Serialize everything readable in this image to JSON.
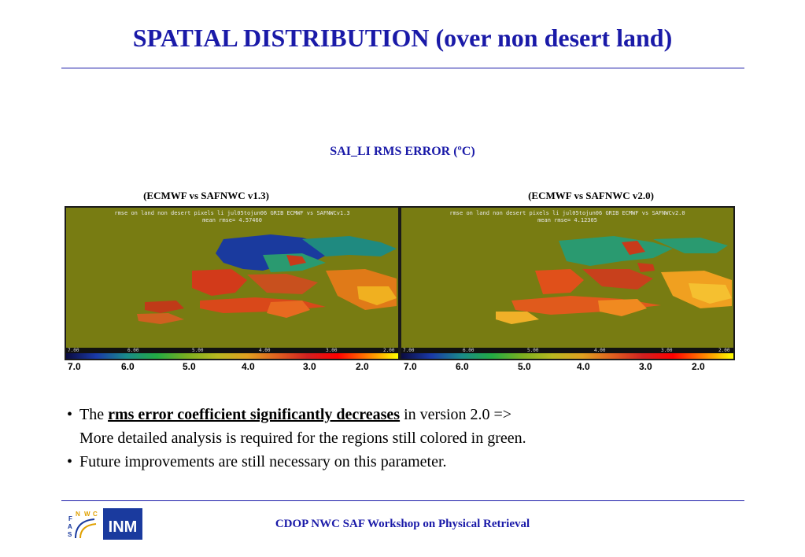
{
  "slide": {
    "title": "SPATIAL DISTRIBUTION (over non desert land)",
    "subtitle": "SAI_LI RMS ERROR (ºC)",
    "footer": "CDOP NWC SAF Workshop on Physical Retrieval"
  },
  "maps": [
    {
      "label": "(ECMWF vs SAFNWC v1.3)",
      "header_line1": "rmse on land non desert pixels li jul05tojun06 GRIB ECMWF vs SAFNWCv1.3",
      "header_line2": "mean rmse=      4.57460",
      "colorbar_ticks": [
        "7.00",
        "6.00",
        "5.00",
        "4.00",
        "3.00",
        "2.00"
      ]
    },
    {
      "label": "(ECMWF vs SAFNWC v2.0)",
      "header_line1": "rmse on land non desert pixels li jul05tojun06 GRIB ECMWF vs SAFNWCv2.0",
      "header_line2": "mean rmse=      4.12305",
      "colorbar_ticks": [
        "7.00",
        "6.00",
        "5.00",
        "4.00",
        "3.00",
        "2.00"
      ]
    }
  ],
  "scale_left": [
    "7.0",
    "6.0",
    "5.0",
    "4.0",
    "3.0",
    "2.0"
  ],
  "scale_right": [
    "7.0",
    "6.0",
    "5.0",
    "4.0",
    "3.0",
    "2.0"
  ],
  "bullets": {
    "b1_prefix": "The",
    "b1_emphasis": "rms error coefficient significantly decreases",
    "b1_suffix": "in version 2.0 =>",
    "b1_line2": "More detailed analysis is required for the regions still colored in green.",
    "b2": "Future improvements are still necessary on this parameter.",
    "bullet_char": "•"
  },
  "logos": {
    "saf_letters": [
      "S",
      "A",
      "F",
      "N",
      "W",
      "C"
    ],
    "inm_text": "INM"
  },
  "colors": {
    "accent": "#1a1aa8",
    "map_background": "#787c12"
  }
}
